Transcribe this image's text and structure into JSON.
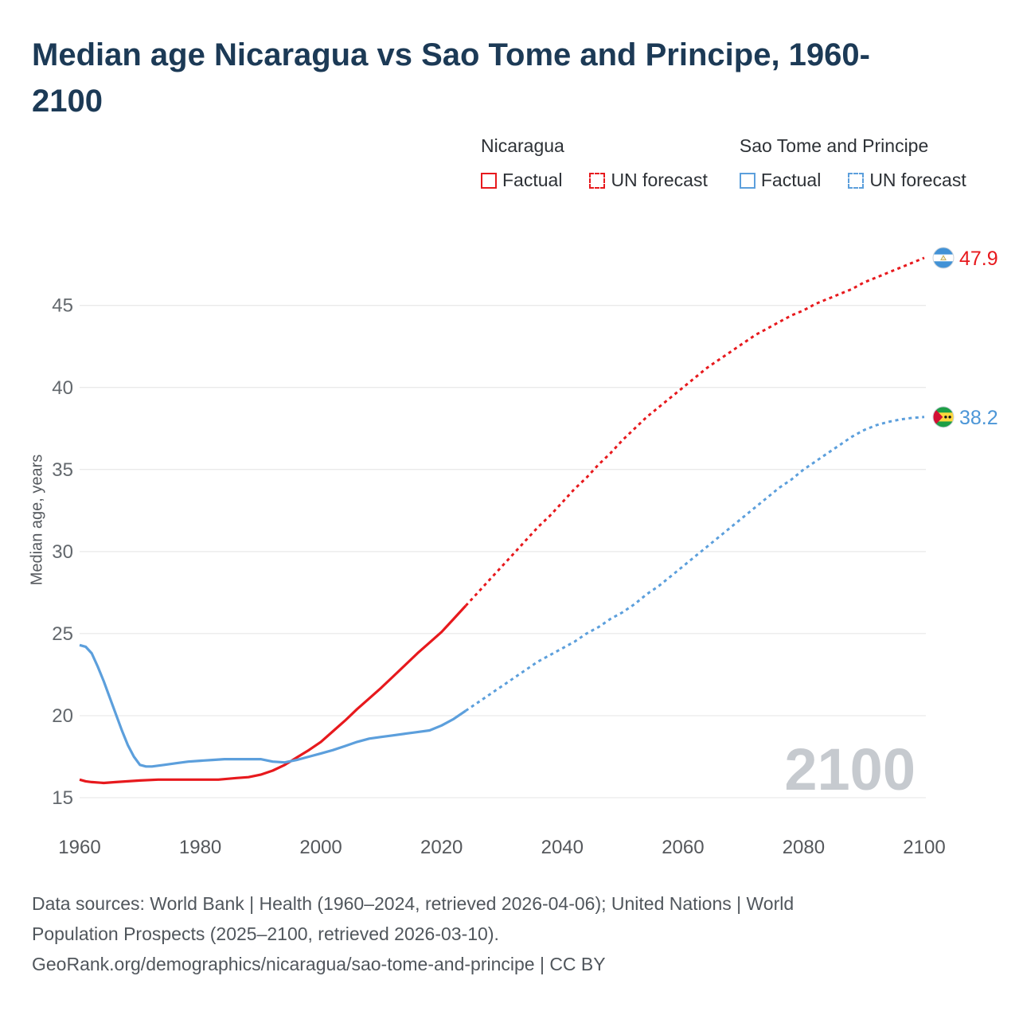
{
  "header": {
    "title_lines": [
      "Median age Nicaragua vs Sao Tome and Principe, 1960-",
      "2100"
    ]
  },
  "legend": {
    "groups": [
      {
        "name": "Nicaragua",
        "color": "#e7191d",
        "items": [
          {
            "label": "Factual",
            "style": "solid"
          },
          {
            "label": "UN forecast",
            "style": "dashed"
          }
        ]
      },
      {
        "name": "Sao Tome and Principe",
        "color": "#5c9fdc",
        "items": [
          {
            "label": "Factual",
            "style": "solid"
          },
          {
            "label": "UN forecast",
            "style": "dashed"
          }
        ]
      }
    ]
  },
  "chart_data": {
    "type": "line",
    "title": "Median age Nicaragua vs Sao Tome and Principe, 1960-2100",
    "xlabel": "",
    "ylabel": "Median age, years",
    "xlim": [
      1960,
      2100
    ],
    "ylim": [
      15,
      48.5
    ],
    "yticks": [
      15,
      20,
      25,
      30,
      35,
      40,
      45
    ],
    "xticks": [
      1960,
      1980,
      2000,
      2020,
      2040,
      2060,
      2080,
      2100
    ],
    "grid": "horizontal",
    "legend_position": "top-right",
    "watermark": "2100",
    "series": [
      {
        "id": "nicaragua-factual",
        "name": "Nicaragua — Factual",
        "color": "#e7191d",
        "dash": "solid",
        "points": [
          [
            1960,
            16.1
          ],
          [
            1961,
            16.0
          ],
          [
            1962,
            15.95
          ],
          [
            1964,
            15.9
          ],
          [
            1966,
            15.95
          ],
          [
            1968,
            16.0
          ],
          [
            1970,
            16.05
          ],
          [
            1973,
            16.1
          ],
          [
            1976,
            16.1
          ],
          [
            1980,
            16.1
          ],
          [
            1983,
            16.1
          ],
          [
            1986,
            16.2
          ],
          [
            1988,
            16.25
          ],
          [
            1990,
            16.4
          ],
          [
            1992,
            16.65
          ],
          [
            1994,
            17.0
          ],
          [
            1996,
            17.45
          ],
          [
            1998,
            17.9
          ],
          [
            2000,
            18.4
          ],
          [
            2002,
            19.05
          ],
          [
            2004,
            19.7
          ],
          [
            2006,
            20.4
          ],
          [
            2008,
            21.05
          ],
          [
            2010,
            21.7
          ],
          [
            2012,
            22.4
          ],
          [
            2014,
            23.1
          ],
          [
            2016,
            23.8
          ],
          [
            2018,
            24.45
          ],
          [
            2020,
            25.1
          ],
          [
            2022,
            25.9
          ],
          [
            2024,
            26.7
          ]
        ]
      },
      {
        "id": "nicaragua-forecast",
        "name": "Nicaragua — UN forecast",
        "color": "#e7191d",
        "dash": "dashed",
        "points": [
          [
            2024,
            26.7
          ],
          [
            2026,
            27.5
          ],
          [
            2028,
            28.3
          ],
          [
            2030,
            29.1
          ],
          [
            2032,
            29.9
          ],
          [
            2034,
            30.7
          ],
          [
            2036,
            31.5
          ],
          [
            2038,
            32.2
          ],
          [
            2040,
            33.0
          ],
          [
            2042,
            33.8
          ],
          [
            2044,
            34.5
          ],
          [
            2046,
            35.3
          ],
          [
            2048,
            36.0
          ],
          [
            2050,
            36.8
          ],
          [
            2052,
            37.5
          ],
          [
            2054,
            38.2
          ],
          [
            2056,
            38.8
          ],
          [
            2058,
            39.4
          ],
          [
            2060,
            40.0
          ],
          [
            2062,
            40.6
          ],
          [
            2064,
            41.2
          ],
          [
            2066,
            41.7
          ],
          [
            2068,
            42.2
          ],
          [
            2070,
            42.7
          ],
          [
            2072,
            43.2
          ],
          [
            2074,
            43.6
          ],
          [
            2076,
            44.0
          ],
          [
            2078,
            44.4
          ],
          [
            2080,
            44.7
          ],
          [
            2082,
            45.1
          ],
          [
            2084,
            45.4
          ],
          [
            2086,
            45.7
          ],
          [
            2088,
            46.0
          ],
          [
            2090,
            46.4
          ],
          [
            2092,
            46.7
          ],
          [
            2094,
            47.0
          ],
          [
            2096,
            47.3
          ],
          [
            2098,
            47.6
          ],
          [
            2100,
            47.9
          ]
        ]
      },
      {
        "id": "saotome-factual",
        "name": "Sao Tome and Principe — Factual",
        "color": "#5c9fdc",
        "dash": "solid",
        "points": [
          [
            1960,
            24.3
          ],
          [
            1961,
            24.2
          ],
          [
            1962,
            23.8
          ],
          [
            1963,
            23.0
          ],
          [
            1964,
            22.1
          ],
          [
            1965,
            21.1
          ],
          [
            1966,
            20.1
          ],
          [
            1967,
            19.1
          ],
          [
            1968,
            18.2
          ],
          [
            1969,
            17.5
          ],
          [
            1970,
            17.0
          ],
          [
            1971,
            16.9
          ],
          [
            1972,
            16.9
          ],
          [
            1974,
            17.0
          ],
          [
            1976,
            17.1
          ],
          [
            1978,
            17.2
          ],
          [
            1980,
            17.25
          ],
          [
            1982,
            17.3
          ],
          [
            1984,
            17.35
          ],
          [
            1986,
            17.35
          ],
          [
            1988,
            17.35
          ],
          [
            1990,
            17.35
          ],
          [
            1992,
            17.2
          ],
          [
            1994,
            17.15
          ],
          [
            1996,
            17.3
          ],
          [
            1998,
            17.5
          ],
          [
            2000,
            17.7
          ],
          [
            2002,
            17.9
          ],
          [
            2004,
            18.15
          ],
          [
            2006,
            18.4
          ],
          [
            2008,
            18.6
          ],
          [
            2010,
            18.7
          ],
          [
            2012,
            18.8
          ],
          [
            2014,
            18.9
          ],
          [
            2016,
            19.0
          ],
          [
            2018,
            19.1
          ],
          [
            2020,
            19.4
          ],
          [
            2022,
            19.8
          ],
          [
            2024,
            20.3
          ]
        ]
      },
      {
        "id": "saotome-forecast",
        "name": "Sao Tome and Principe — UN forecast",
        "color": "#5c9fdc",
        "dash": "dashed",
        "points": [
          [
            2024,
            20.3
          ],
          [
            2026,
            20.8
          ],
          [
            2028,
            21.3
          ],
          [
            2030,
            21.8
          ],
          [
            2032,
            22.3
          ],
          [
            2034,
            22.8
          ],
          [
            2036,
            23.3
          ],
          [
            2038,
            23.7
          ],
          [
            2040,
            24.1
          ],
          [
            2042,
            24.5
          ],
          [
            2044,
            25.0
          ],
          [
            2046,
            25.4
          ],
          [
            2048,
            25.9
          ],
          [
            2050,
            26.3
          ],
          [
            2052,
            26.8
          ],
          [
            2054,
            27.4
          ],
          [
            2056,
            27.9
          ],
          [
            2058,
            28.5
          ],
          [
            2060,
            29.1
          ],
          [
            2062,
            29.7
          ],
          [
            2064,
            30.3
          ],
          [
            2066,
            30.9
          ],
          [
            2068,
            31.5
          ],
          [
            2070,
            32.1
          ],
          [
            2072,
            32.7
          ],
          [
            2074,
            33.3
          ],
          [
            2076,
            33.9
          ],
          [
            2078,
            34.4
          ],
          [
            2080,
            35.0
          ],
          [
            2082,
            35.5
          ],
          [
            2084,
            36.0
          ],
          [
            2086,
            36.5
          ],
          [
            2088,
            37.0
          ],
          [
            2090,
            37.4
          ],
          [
            2092,
            37.7
          ],
          [
            2094,
            37.9
          ],
          [
            2096,
            38.05
          ],
          [
            2098,
            38.15
          ],
          [
            2100,
            38.2
          ]
        ]
      }
    ],
    "end_labels": [
      {
        "value": "47.9",
        "at": 47.9,
        "color": "#e7191d",
        "flag": "nicaragua"
      },
      {
        "value": "38.2",
        "at": 38.2,
        "color": "#4c96d7",
        "flag": "sao-tome-and-principe"
      }
    ]
  },
  "footer": {
    "lines": [
      "Data sources: World Bank | Health (1960–2024, retrieved 2026-04-06); United Nations | World",
      "Population Prospects (2025–2100, retrieved 2026-03-10).",
      "GeoRank.org/demographics/nicaragua/sao-tome-and-principe | CC BY"
    ]
  }
}
